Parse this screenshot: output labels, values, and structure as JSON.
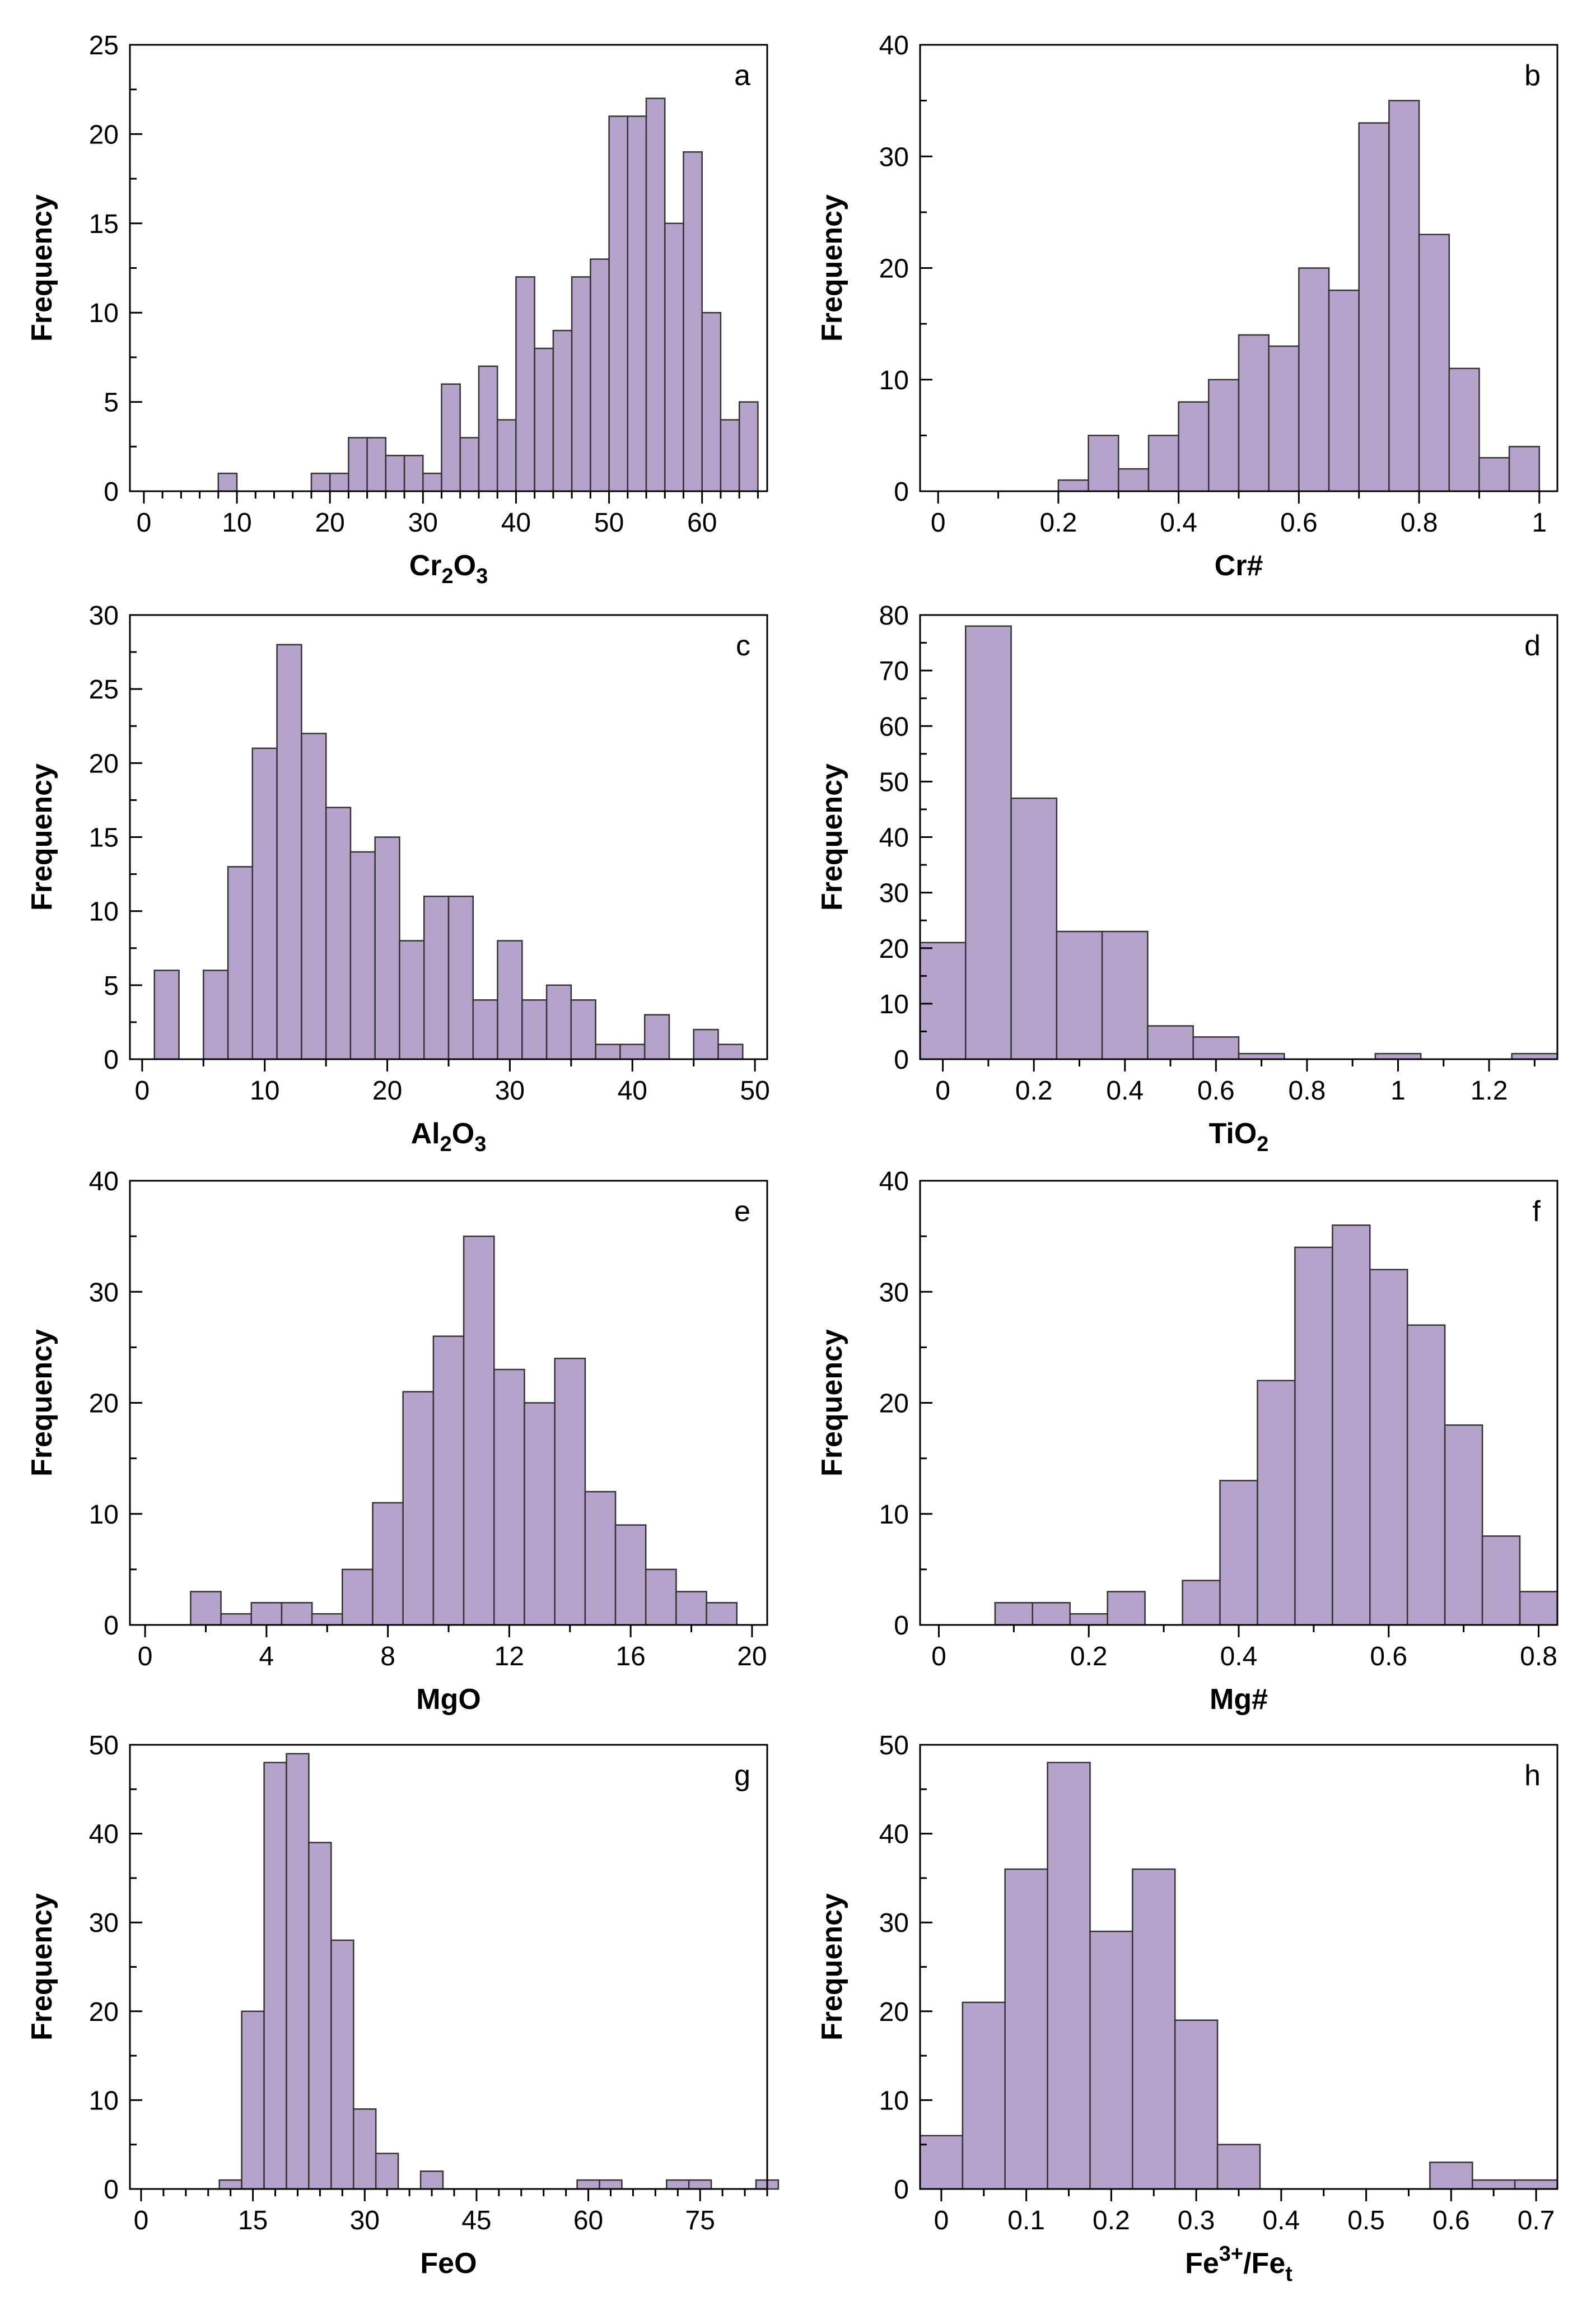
{
  "colors": {
    "bar_fill": "#b6a3cb",
    "bar_stroke": "#333333",
    "axis": "#000000"
  },
  "chart_data": [
    {
      "panel": "a",
      "type": "bar",
      "xlabel": "Cr₂O₃",
      "xlabel_main": "Cr",
      "xlabel_sub1": "2",
      "xlabel_mid": "O",
      "xlabel_sub2": "3",
      "ylabel": "Frequency",
      "xlim": [
        -1.5,
        67
      ],
      "ylim": [
        0,
        25
      ],
      "xticks": [
        0,
        10,
        20,
        30,
        40,
        50,
        60
      ],
      "xtick_labels": [
        "0",
        "10",
        "20",
        "30",
        "40",
        "50",
        "60"
      ],
      "xtick_minor_step": 2,
      "yticks": [
        0,
        5,
        10,
        15,
        20,
        25
      ],
      "ytick_labels": [
        "0",
        "5",
        "10",
        "15",
        "20",
        "25"
      ],
      "bin_width": 2,
      "bins": [
        9,
        19,
        21,
        23,
        25,
        27,
        29,
        31,
        33,
        35,
        37,
        39,
        41,
        43,
        45,
        47,
        49,
        51,
        53,
        55,
        57,
        59,
        61,
        63,
        65
      ],
      "values": [
        1,
        1,
        1,
        3,
        3,
        2,
        2,
        1,
        6,
        3,
        7,
        4,
        12,
        8,
        9,
        12,
        13,
        21,
        21,
        22,
        15,
        19,
        10,
        4,
        5
      ]
    },
    {
      "panel": "b",
      "type": "bar",
      "xlabel": "Cr#",
      "ylabel": "Frequency",
      "xlim": [
        -0.03,
        1.03
      ],
      "ylim": [
        0,
        40
      ],
      "xticks": [
        0,
        0.2,
        0.4,
        0.6,
        0.8,
        1
      ],
      "xtick_labels": [
        "0",
        "0.2",
        "0.4",
        "0.6",
        "0.8",
        "1"
      ],
      "yticks": [
        0,
        10,
        20,
        30,
        40
      ],
      "ytick_labels": [
        "0",
        "10",
        "20",
        "30",
        "40"
      ],
      "bin_width": 0.05,
      "bins": [
        0.225,
        0.275,
        0.325,
        0.375,
        0.425,
        0.475,
        0.525,
        0.575,
        0.625,
        0.675,
        0.725,
        0.775,
        0.825,
        0.875,
        0.925,
        0.975,
        1.025
      ],
      "values": [
        1,
        5,
        2,
        5,
        8,
        10,
        14,
        13,
        20,
        18,
        33,
        35,
        23,
        11,
        3,
        4,
        0
      ]
    },
    {
      "panel": "c",
      "type": "bar",
      "xlabel": "Al₂O₃",
      "xlabel_main": "Al",
      "xlabel_sub1": "2",
      "xlabel_mid": "O",
      "xlabel_sub2": "3",
      "ylabel": "Frequency",
      "xlim": [
        -1,
        51
      ],
      "ylim": [
        0,
        30
      ],
      "xticks": [
        0,
        10,
        20,
        30,
        40,
        50
      ],
      "xtick_labels": [
        "0",
        "10",
        "20",
        "30",
        "40",
        "50"
      ],
      "yticks": [
        0,
        5,
        10,
        15,
        20,
        25,
        30
      ],
      "ytick_labels": [
        "0",
        "5",
        "10",
        "15",
        "20",
        "25",
        "30"
      ],
      "bin_width": 2,
      "bins": [
        2,
        6,
        8,
        10,
        12,
        14,
        16,
        18,
        20,
        22,
        24,
        26,
        28,
        30,
        32,
        34,
        36,
        38,
        40,
        42,
        46,
        48
      ],
      "values": [
        6,
        6,
        13,
        21,
        28,
        22,
        17,
        14,
        15,
        8,
        11,
        11,
        4,
        8,
        4,
        5,
        4,
        1,
        1,
        3,
        2,
        1
      ]
    },
    {
      "panel": "d",
      "type": "bar",
      "xlabel": "TiO₂",
      "xlabel_main": "TiO",
      "xlabel_sub1": "2",
      "ylabel": "Frequency",
      "xlim": [
        -0.05,
        1.35
      ],
      "ylim": [
        0,
        80
      ],
      "xticks": [
        0,
        0.2,
        0.4,
        0.6,
        0.8,
        1,
        1.2
      ],
      "xtick_labels": [
        "0",
        "0.2",
        "0.4",
        "0.6",
        "0.8",
        "1",
        "1.2"
      ],
      "yticks": [
        0,
        10,
        20,
        30,
        40,
        50,
        60,
        70,
        80
      ],
      "ytick_labels": [
        "0",
        "10",
        "20",
        "30",
        "40",
        "50",
        "60",
        "70",
        "80"
      ],
      "bin_width": 0.1,
      "bins": [
        0,
        0.1,
        0.2,
        0.3,
        0.4,
        0.5,
        0.6,
        0.7,
        1.0,
        1.3
      ],
      "values": [
        21,
        78,
        47,
        23,
        23,
        6,
        4,
        1,
        1,
        1
      ]
    },
    {
      "panel": "e",
      "type": "bar",
      "xlabel": "MgO",
      "ylabel": "Frequency",
      "xlim": [
        -0.5,
        20.5
      ],
      "ylim": [
        0,
        40
      ],
      "xticks": [
        0,
        4,
        8,
        12,
        16,
        20
      ],
      "xtick_labels": [
        "0",
        "4",
        "8",
        "12",
        "16",
        "20"
      ],
      "yticks": [
        0,
        10,
        20,
        30,
        40
      ],
      "ytick_labels": [
        "0",
        "10",
        "20",
        "30",
        "40"
      ],
      "bin_width": 1,
      "bins": [
        2,
        3,
        4,
        5,
        6,
        7,
        8,
        9,
        10,
        11,
        12,
        13,
        14,
        15,
        16,
        17,
        18,
        19
      ],
      "values": [
        3,
        1,
        2,
        2,
        1,
        5,
        11,
        21,
        26,
        35,
        23,
        20,
        24,
        12,
        9,
        5,
        3,
        2
      ]
    },
    {
      "panel": "f",
      "type": "bar",
      "xlabel": "Mg#",
      "ylabel": "Frequency",
      "xlim": [
        -0.025,
        0.825
      ],
      "ylim": [
        0,
        40
      ],
      "xticks": [
        0,
        0.2,
        0.4,
        0.6,
        0.8
      ],
      "xtick_labels": [
        "0",
        "0.2",
        "0.4",
        "0.6",
        "0.8"
      ],
      "yticks": [
        0,
        10,
        20,
        30,
        40
      ],
      "ytick_labels": [
        "0",
        "10",
        "20",
        "30",
        "40"
      ],
      "bin_width": 0.05,
      "bins": [
        0.1,
        0.15,
        0.2,
        0.25,
        0.35,
        0.4,
        0.45,
        0.5,
        0.55,
        0.6,
        0.65,
        0.7,
        0.75,
        0.8
      ],
      "values": [
        2,
        2,
        1,
        3,
        4,
        13,
        22,
        34,
        36,
        32,
        27,
        18,
        8,
        3
      ]
    },
    {
      "panel": "g",
      "type": "bar",
      "xlabel": "FeO",
      "ylabel": "Frequency",
      "xlim": [
        -1.5,
        84
      ],
      "ylim": [
        0,
        50
      ],
      "xticks": [
        0,
        15,
        30,
        45,
        60,
        75
      ],
      "xtick_labels": [
        "0",
        "15",
        "30",
        "45",
        "60",
        "75"
      ],
      "xtick_minor_step": 3,
      "yticks": [
        0,
        10,
        20,
        30,
        40,
        50
      ],
      "ytick_labels": [
        "0",
        "10",
        "20",
        "30",
        "40",
        "50"
      ],
      "bin_width": 3,
      "bins": [
        12,
        15,
        18,
        21,
        24,
        27,
        30,
        33,
        39,
        60,
        63,
        72,
        75,
        84
      ],
      "values": [
        1,
        20,
        48,
        49,
        39,
        28,
        9,
        4,
        2,
        1,
        1,
        1,
        1,
        1
      ]
    },
    {
      "panel": "h",
      "type": "bar",
      "xlabel": "Fe³⁺/Feₜ",
      "xlabel_main": "Fe",
      "xlabel_sup": "3+",
      "xlabel_mid": "/Fe",
      "xlabel_sub1": "t",
      "ylabel": "Frequency",
      "xlim": [
        -0.025,
        0.725
      ],
      "ylim": [
        0,
        50
      ],
      "xticks": [
        0,
        0.1,
        0.2,
        0.3,
        0.4,
        0.5,
        0.6,
        0.7
      ],
      "xtick_labels": [
        "0",
        "0.1",
        "0.2",
        "0.3",
        "0.4",
        "0.5",
        "0.6",
        "0.7"
      ],
      "yticks": [
        0,
        10,
        20,
        30,
        40,
        50
      ],
      "ytick_labels": [
        "0",
        "10",
        "20",
        "30",
        "40",
        "50"
      ],
      "bin_width": 0.05,
      "bins": [
        0,
        0.05,
        0.1,
        0.15,
        0.2,
        0.25,
        0.3,
        0.35,
        0.6,
        0.65,
        0.7
      ],
      "values": [
        6,
        21,
        36,
        48,
        29,
        36,
        19,
        5,
        3,
        1,
        1
      ]
    }
  ]
}
